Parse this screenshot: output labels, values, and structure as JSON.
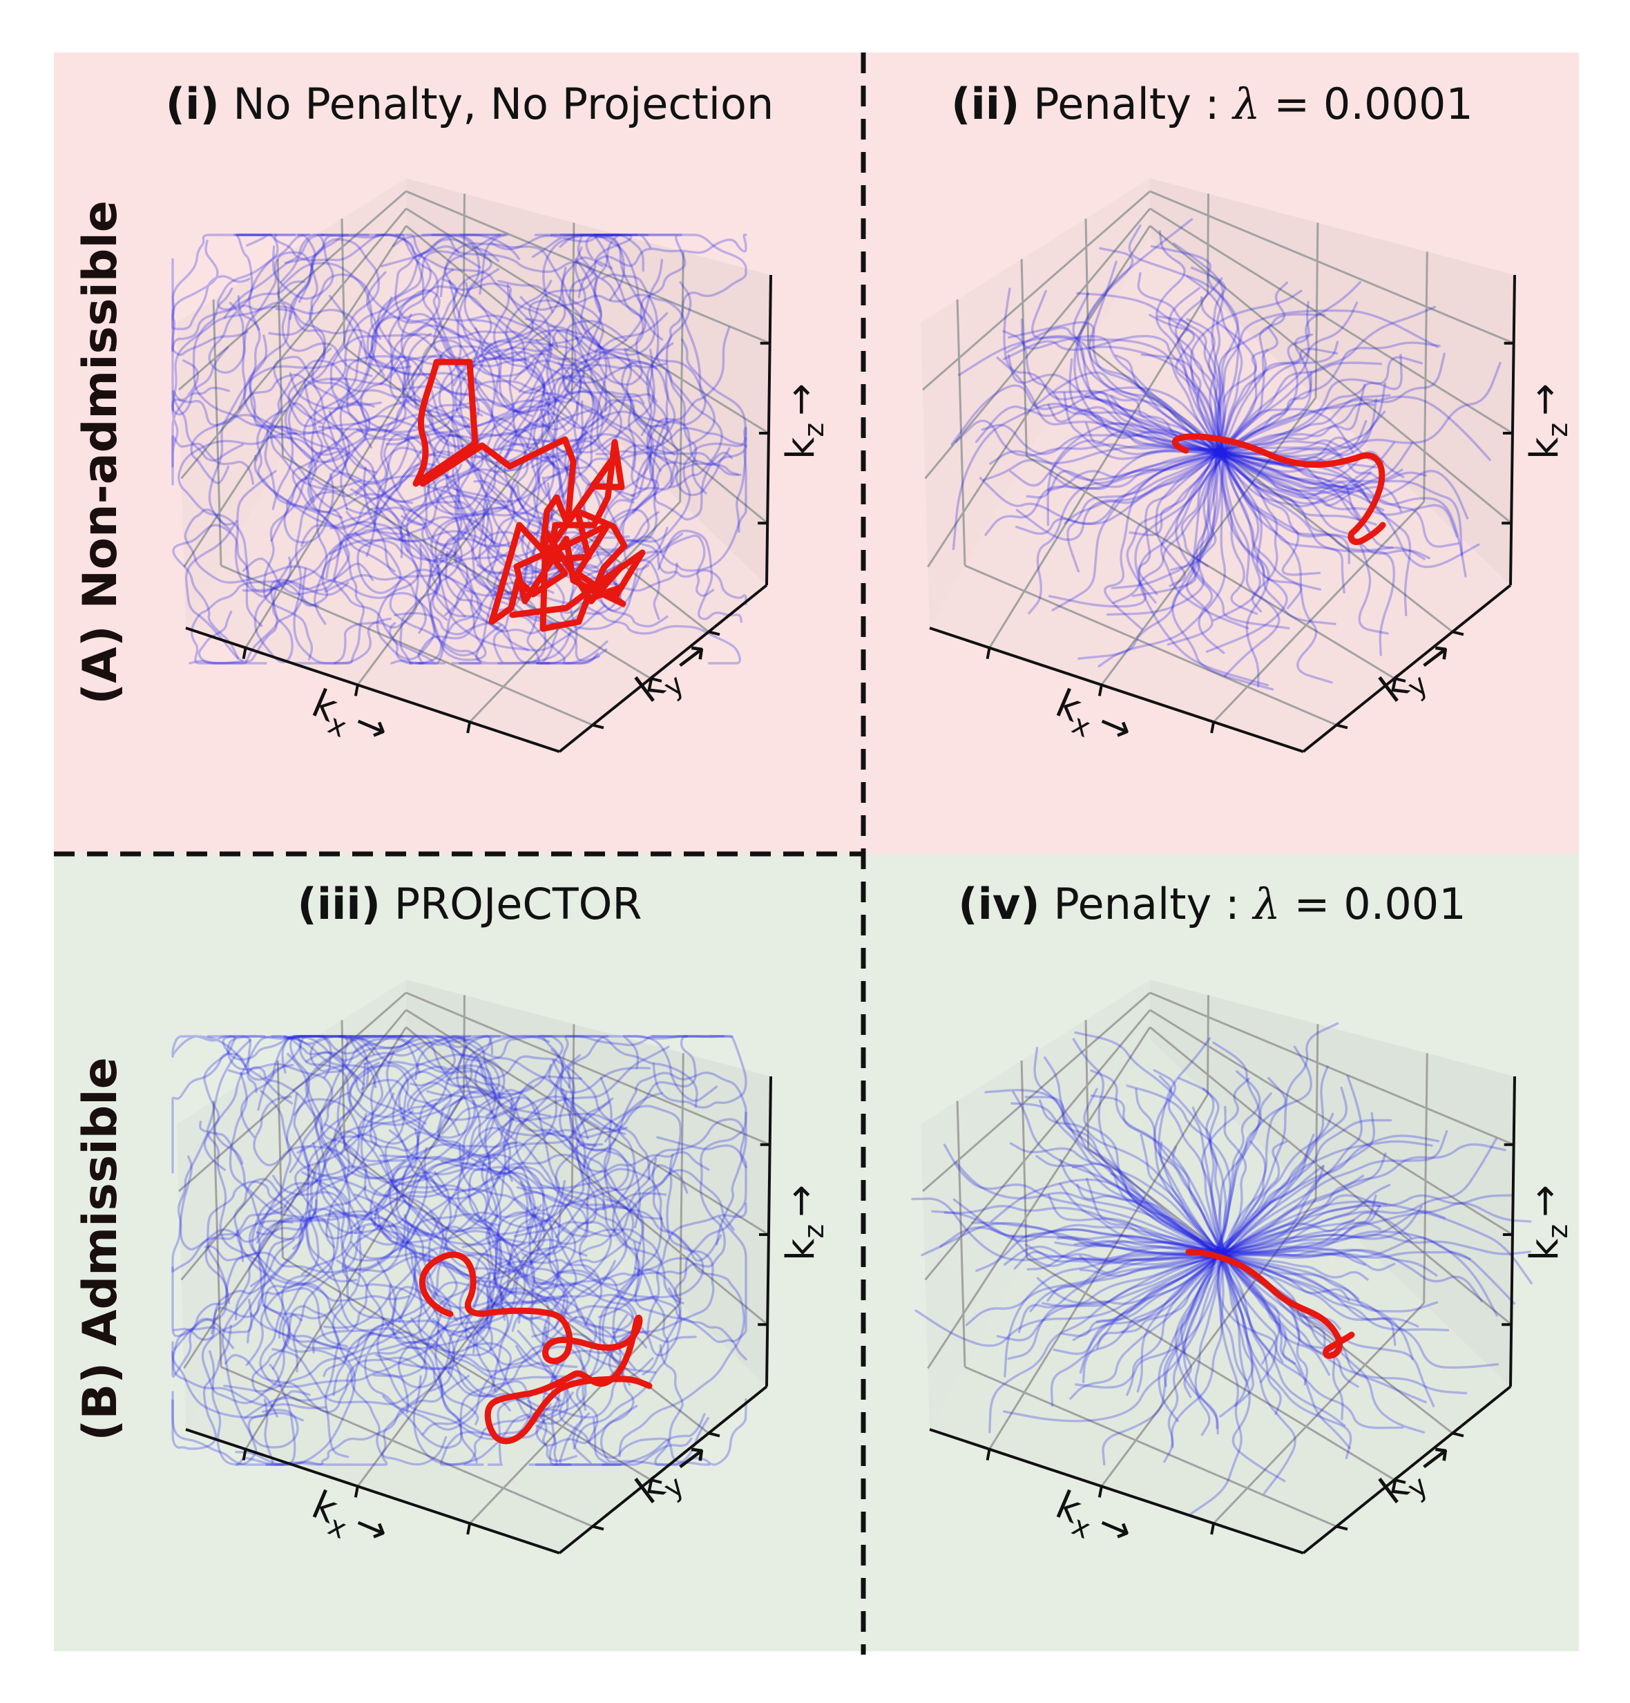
{
  "figure": {
    "colors": {
      "row_a_background": "#fbe3e3",
      "row_b_background": "#e6eee4",
      "trajectory": "#2020e6",
      "highlight": "#e8170f",
      "divider": "#111111"
    },
    "rows": [
      {
        "id": "A",
        "label": "(A) Non-admissible"
      },
      {
        "id": "B",
        "label": "(B) Admissible"
      }
    ],
    "panels": [
      {
        "id": "i",
        "row": "A",
        "tag": "(i)",
        "title": "No Penalty, No Projection",
        "lambda": "",
        "pattern": "cloud",
        "highlight": "jagged"
      },
      {
        "id": "ii",
        "row": "A",
        "tag": "(ii)",
        "title": "Penalty : ",
        "lambda": "0.0001",
        "pattern": "radial",
        "highlight": "smooth"
      },
      {
        "id": "iii",
        "row": "B",
        "tag": "(iii)",
        "title": "PROJeCTOR",
        "lambda": "",
        "pattern": "cloud",
        "highlight": "loops"
      },
      {
        "id": "iv",
        "row": "B",
        "tag": "(iv)",
        "title": "Penalty : ",
        "lambda": "0.001",
        "pattern": "star",
        "highlight": "smooth"
      }
    ],
    "axes": {
      "x": {
        "symbol": "k",
        "subscript": "x",
        "arrow": "→"
      },
      "y": {
        "symbol": "k",
        "subscript": "y",
        "arrow": "→"
      },
      "z": {
        "symbol": "k",
        "subscript": "z",
        "arrow": "→"
      }
    },
    "lambda_symbol": "λ",
    "equals_sign": " = "
  }
}
